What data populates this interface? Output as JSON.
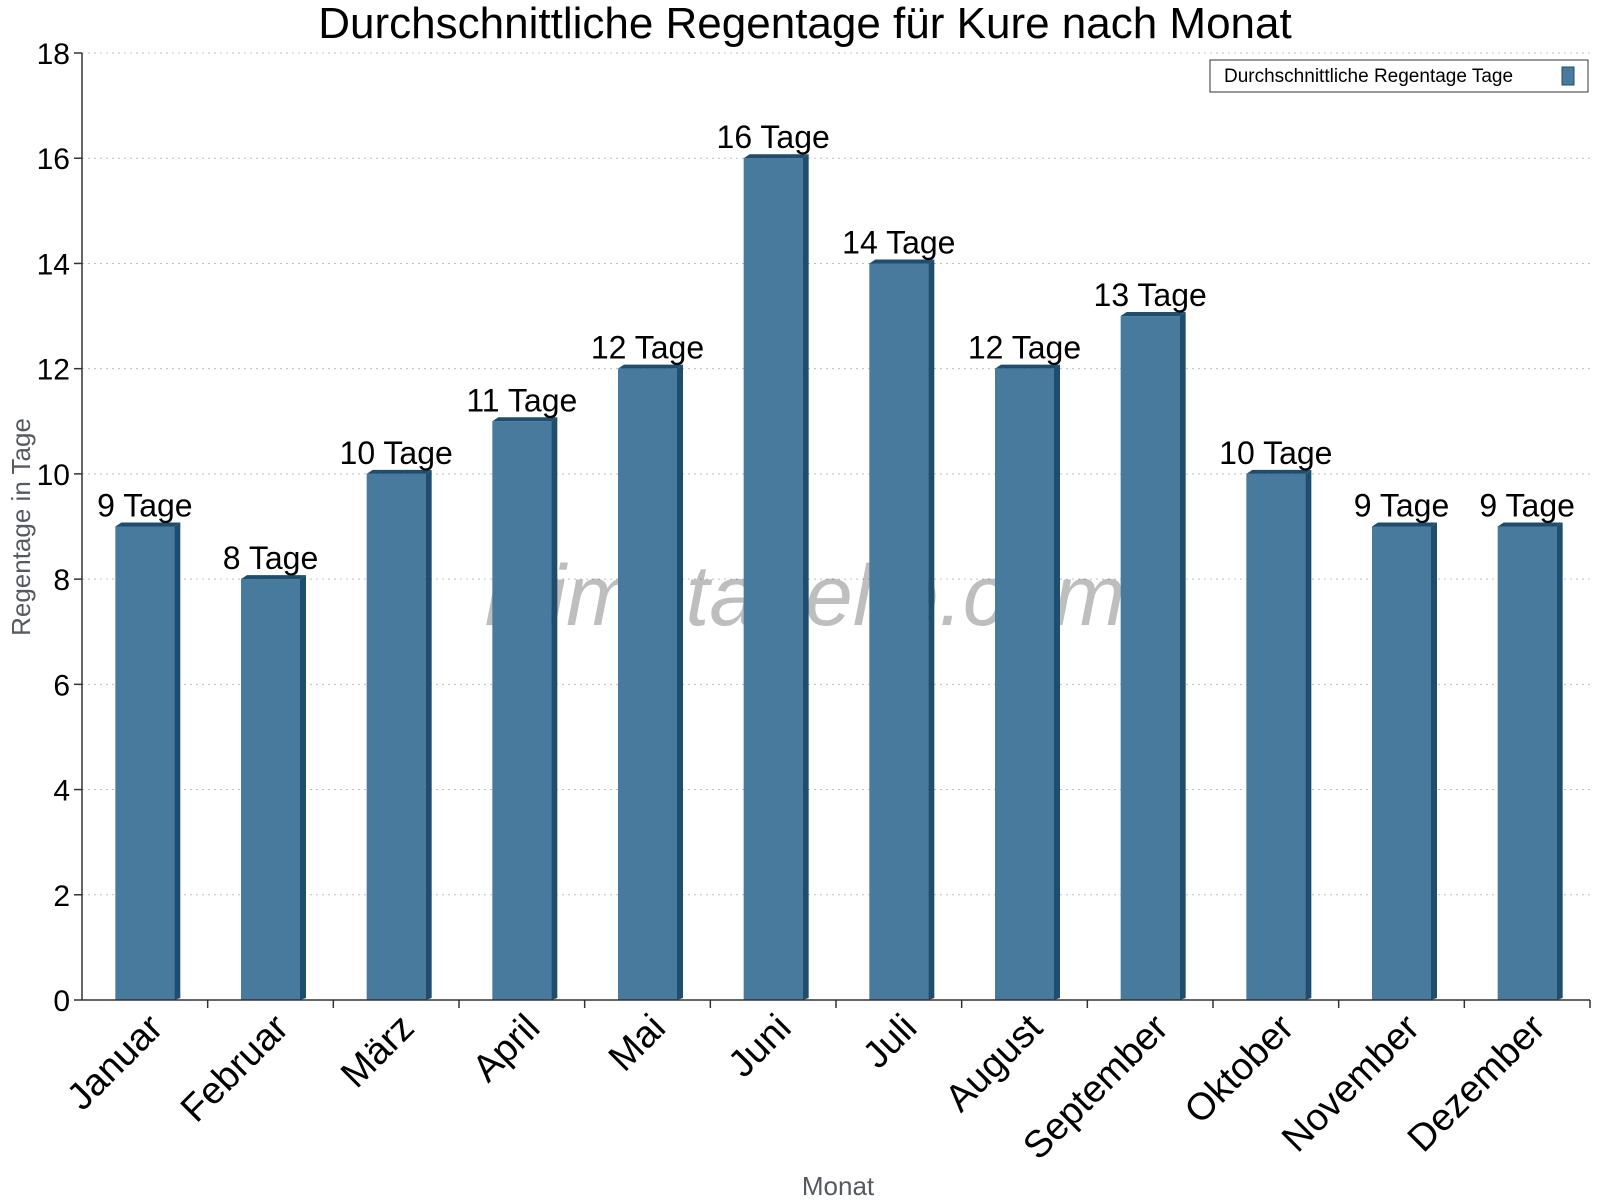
{
  "chart_data": {
    "type": "bar",
    "title": "Durchschnittliche Regentage für Kure nach Monat",
    "xlabel": "Monat",
    "ylabel": "Regentage in Tage",
    "ylim": [
      0,
      18
    ],
    "yticks": [
      0,
      2,
      4,
      6,
      8,
      10,
      12,
      14,
      16,
      18
    ],
    "grid": true,
    "legend_position": "top-right",
    "categories": [
      "Januar",
      "Februar",
      "März",
      "April",
      "Mai",
      "Juni",
      "Juli",
      "August",
      "September",
      "Oktober",
      "November",
      "Dezember"
    ],
    "series": [
      {
        "name": "Durchschnittliche Regentage Tage",
        "values": [
          9,
          8,
          10,
          11,
          12,
          16,
          14,
          12,
          13,
          10,
          9,
          9
        ],
        "labels": [
          "9 Tage",
          "8 Tage",
          "10 Tage",
          "11 Tage",
          "12 Tage",
          "16 Tage",
          "14 Tage",
          "12 Tage",
          "13 Tage",
          "10 Tage",
          "9 Tage",
          "9 Tage"
        ],
        "color": "#477a9c",
        "side_color": "#1f4d6e"
      }
    ],
    "watermark": "klimatabelle.com"
  }
}
